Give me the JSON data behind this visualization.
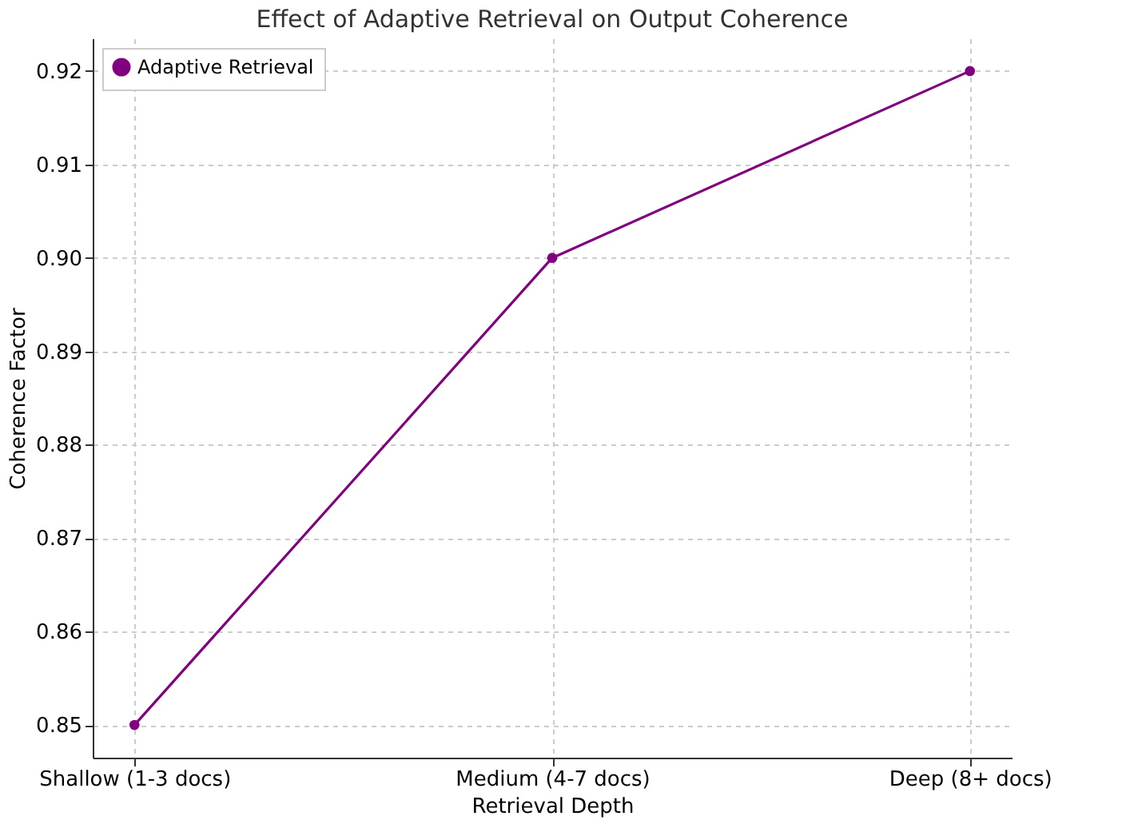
{
  "chart_data": {
    "type": "line",
    "title": "Effect of Adaptive Retrieval on Output Coherence",
    "xlabel": "Retrieval Depth",
    "ylabel": "Coherence Factor",
    "categories": [
      "Shallow (1-3 docs)",
      "Medium (4-7 docs)",
      "Deep (8+ docs)"
    ],
    "series": [
      {
        "name": "Adaptive Retrieval",
        "color": "#800080",
        "values": [
          0.85,
          0.9,
          0.92
        ]
      }
    ],
    "ylim": [
      0.8465,
      0.9235
    ],
    "yticks": [
      0.85,
      0.86,
      0.87,
      0.88,
      0.89,
      {
        "value": 0.9,
        "label": "0.90"
      },
      0.91,
      0.92
    ],
    "grid": true,
    "legend": "top left",
    "marker": "circle",
    "line_style": "solid"
  }
}
